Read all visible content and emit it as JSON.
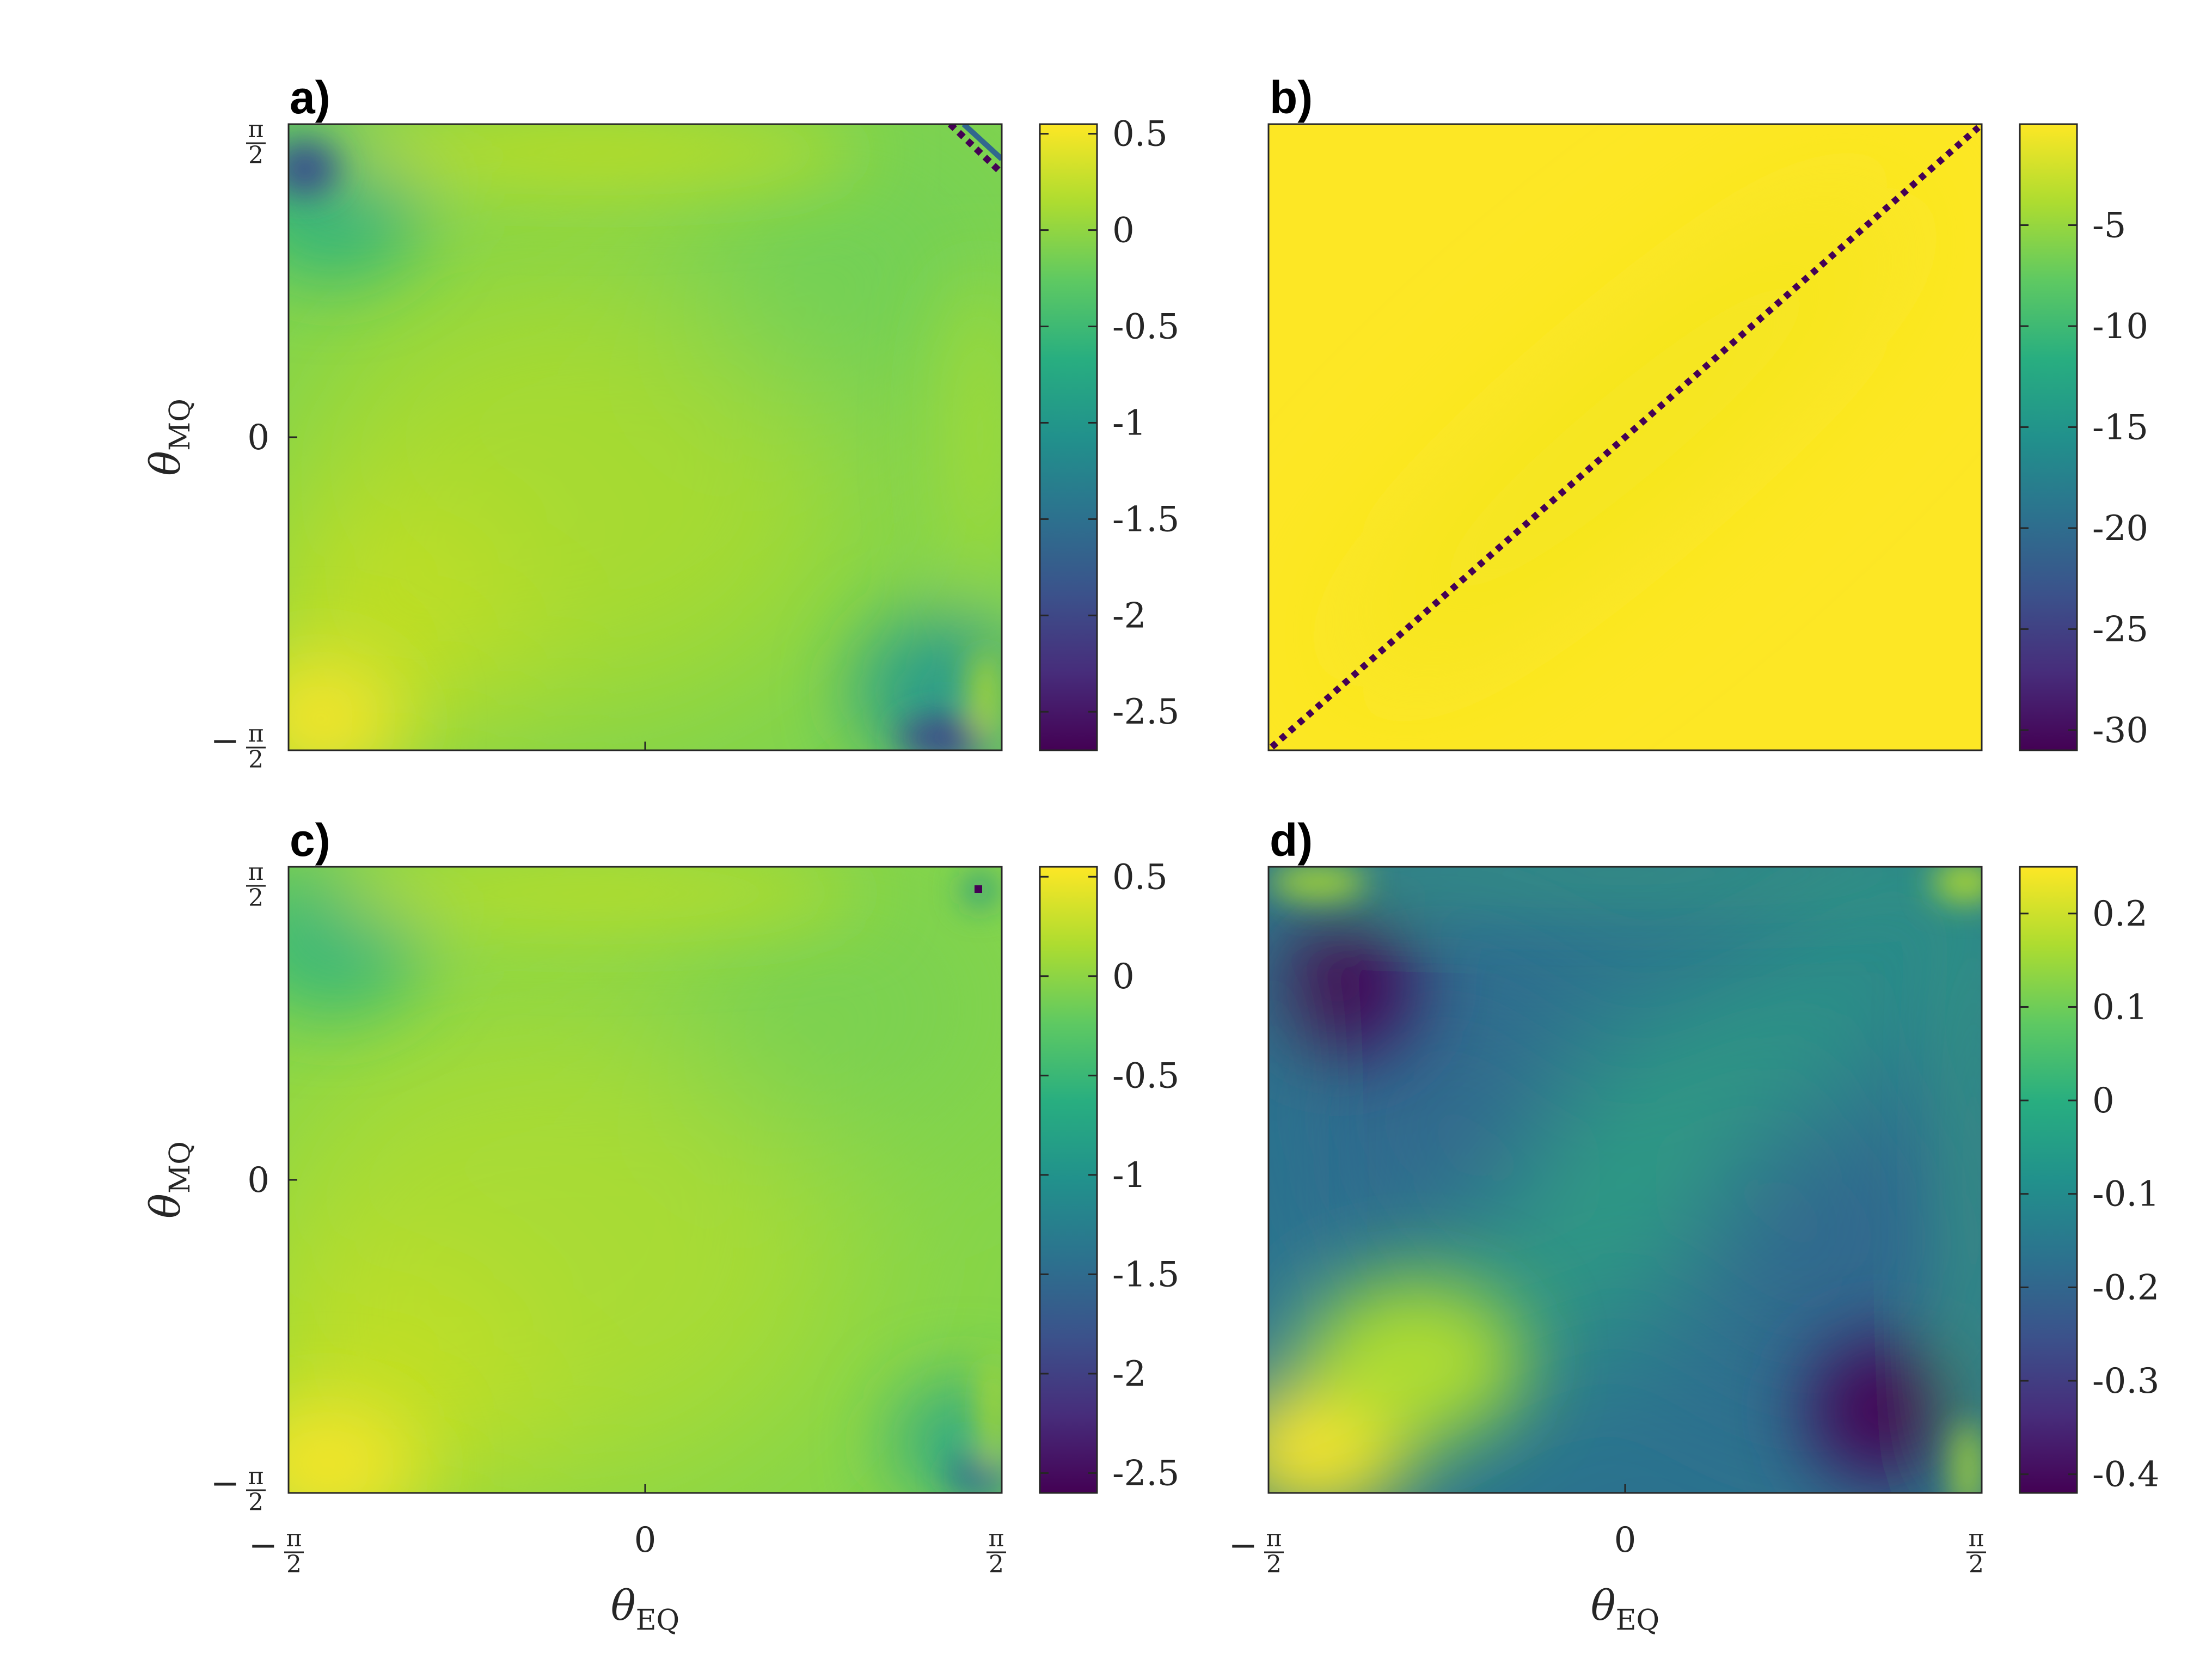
{
  "chart_data": [
    {
      "panel": "a)",
      "type": "heatmap",
      "xlabel": "θ_EQ",
      "ylabel": "θ_MQ",
      "xticks": [
        "−π/2",
        "",
        "π/2"
      ],
      "yticks": [
        "−π/2",
        "0",
        "π/2"
      ],
      "colorbar": {
        "min": -2.7,
        "max": 0.55,
        "ticks": [
          "0.5",
          "0",
          "-0.5",
          "-1",
          "-1.5",
          "-2",
          "-2.5"
        ],
        "tick_values": [
          0.5,
          0,
          -0.5,
          -1,
          -1.5,
          -2,
          -2.5
        ]
      },
      "colormap": "viridis"
    },
    {
      "panel": "b)",
      "type": "heatmap",
      "xlabel": "",
      "ylabel": "",
      "colorbar": {
        "min": -31,
        "max": 0,
        "ticks": [
          "-5",
          "-10",
          "-15",
          "-20",
          "-25",
          "-30"
        ],
        "tick_values": [
          -5,
          -10,
          -15,
          -20,
          -25,
          -30
        ]
      },
      "colormap": "viridis"
    },
    {
      "panel": "c)",
      "type": "heatmap",
      "xlabel": "θ_EQ",
      "ylabel": "θ_MQ",
      "xticks": [
        "−π/2",
        "0",
        "π/2"
      ],
      "yticks": [
        "−π/2",
        "0",
        "π/2"
      ],
      "colorbar": {
        "min": -2.6,
        "max": 0.55,
        "ticks": [
          "0.5",
          "0",
          "-0.5",
          "-1",
          "-1.5",
          "-2",
          "-2.5"
        ],
        "tick_values": [
          0.5,
          0,
          -0.5,
          -1,
          -1.5,
          -2,
          -2.5
        ]
      },
      "colormap": "viridis"
    },
    {
      "panel": "d)",
      "type": "heatmap",
      "xlabel": "θ_EQ",
      "ylabel": "",
      "xticks": [
        "−π/2",
        "0",
        "π/2"
      ],
      "colorbar": {
        "min": -0.42,
        "max": 0.25,
        "ticks": [
          "0.2",
          "0.1",
          "0",
          "-0.1",
          "-0.2",
          "-0.3",
          "-0.4"
        ],
        "tick_values": [
          0.2,
          0.1,
          0,
          -0.1,
          -0.2,
          -0.3,
          -0.4
        ]
      },
      "colormap": "viridis"
    }
  ],
  "labels": {
    "a": "a)",
    "b": "b)",
    "c": "c)",
    "d": "d)",
    "theta": "θ",
    "sub_mq": "MQ",
    "sub_eq": "EQ",
    "zero": "0",
    "pi": "π",
    "two": "2",
    "minus": "−"
  }
}
